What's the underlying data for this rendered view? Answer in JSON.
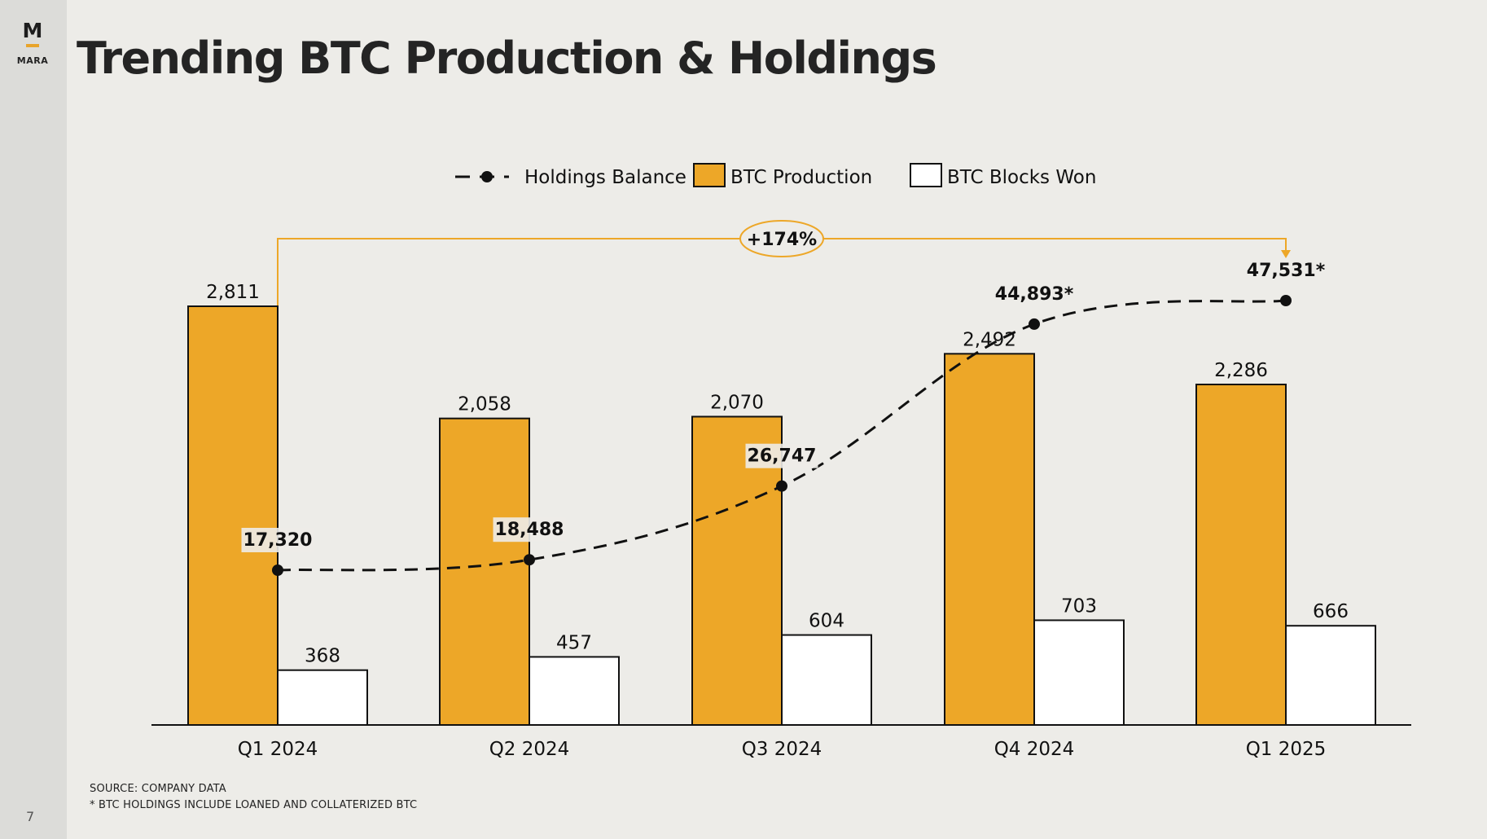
{
  "slide": {
    "title": "Trending BTC Production & Holdings",
    "logo_letter": "M",
    "logo_text": "MARA",
    "page_number": "7",
    "footnotes": [
      "SOURCE: COMPANY DATA",
      "* BTC HOLDINGS INCLUDE LOANED AND COLLATERIZED BTC"
    ]
  },
  "colors": {
    "production": "#eda728",
    "blocks_won": "#ffffff",
    "holdings_line": "#111111",
    "accent_bracket": "#eda728"
  },
  "chart_data": {
    "type": "bar",
    "categories": [
      "Q1 2024",
      "Q2 2024",
      "Q3 2024",
      "Q4 2024",
      "Q1 2025"
    ],
    "series": [
      {
        "name": "BTC Production",
        "values": [
          2811,
          2058,
          2070,
          2492,
          2286
        ],
        "labels": [
          "2,811",
          "2,058",
          "2,070",
          "2,492",
          "2,286"
        ]
      },
      {
        "name": "BTC Blocks Won",
        "values": [
          368,
          457,
          604,
          703,
          666
        ],
        "labels": [
          "368",
          "457",
          "604",
          "703",
          "666"
        ]
      }
    ],
    "line_series": {
      "name": "Holdings Balance",
      "values": [
        17320,
        18488,
        26747,
        44893,
        47531
      ],
      "labels": [
        "17,320",
        "18,488",
        "26,747",
        "44,893*",
        "47,531*"
      ]
    },
    "annotation": "+174%",
    "legend": [
      "Holdings Balance",
      "BTC Production",
      "BTC Blocks Won"
    ],
    "legend_position": "top-center",
    "grid": false
  }
}
